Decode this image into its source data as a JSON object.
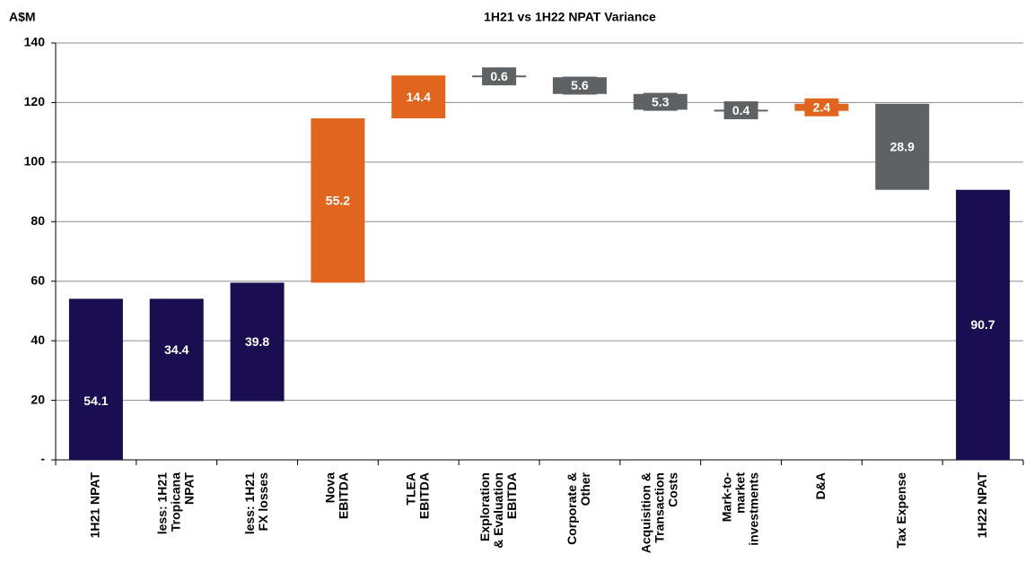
{
  "chart_data": {
    "type": "waterfall",
    "title": "1H21 vs 1H22 NPAT Variance",
    "y_label": "A$M",
    "categories": [
      [
        "1H21 NPAT"
      ],
      [
        "less: 1H21",
        "Tropicana",
        "NPAT"
      ],
      [
        "less: 1H21",
        "FX losses"
      ],
      [
        "Nova",
        "EBITDA"
      ],
      [
        "TLEA",
        "EBITDA"
      ],
      [
        "Exploration",
        "& Evaluation",
        "EBITDA"
      ],
      [
        "Corporate &",
        "Other"
      ],
      [
        "Acquisition &",
        "Transaction",
        "Costs"
      ],
      [
        "Mark-to-",
        "market",
        "investments"
      ],
      [
        "D&A"
      ],
      [
        "Tax Expense"
      ],
      [
        "1H22 NPAT"
      ]
    ],
    "values": [
      54.1,
      34.4,
      39.8,
      55.2,
      14.4,
      0.6,
      5.6,
      5.3,
      0.4,
      2.4,
      28.9,
      90.7
    ],
    "kinds": [
      "total",
      "decrease",
      "increase",
      "increase",
      "increase",
      "decrease",
      "decrease",
      "decrease",
      "decrease",
      "increase",
      "decrease",
      "total"
    ],
    "colors": [
      "#1b0e50",
      "#1b0e50",
      "#1b0e50",
      "#e0661f",
      "#e0661f",
      "#5f6265",
      "#5f6265",
      "#5f6265",
      "#5f6265",
      "#e0661f",
      "#5f6265",
      "#1b0e50"
    ],
    "ylim": [
      0,
      140
    ],
    "yticks": [
      {
        "value": 0,
        "label": "-"
      },
      20,
      40,
      60,
      80,
      100,
      120,
      140
    ],
    "grid": true
  }
}
